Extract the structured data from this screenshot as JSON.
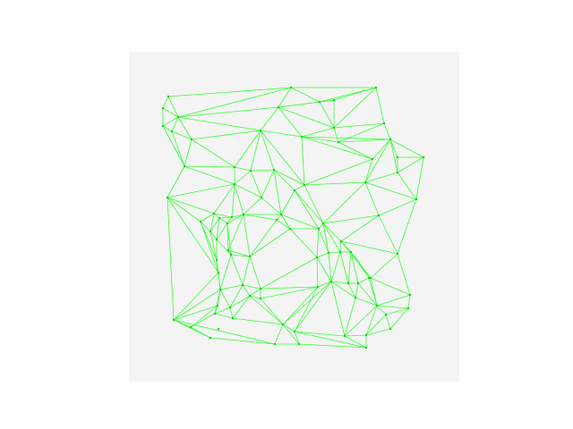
{
  "figure": {
    "background_color": "#ffffff",
    "axes_background_color": "#f4f4f4",
    "edge_color": "#33ff33",
    "node_color": "#22cc22"
  },
  "chart_data": {
    "type": "scatter",
    "title": "",
    "xlabel": "",
    "ylabel": "",
    "axes_visible": false,
    "grid": false,
    "xlim": [
      0,
      369
    ],
    "ylim": [
      0,
      369
    ],
    "points": [
      [
        44,
        50
      ],
      [
        181,
        40
      ],
      [
        276,
        40
      ],
      [
        38,
        63
      ],
      [
        55,
        73
      ],
      [
        167,
        62
      ],
      [
        213,
        56
      ],
      [
        229,
        54
      ],
      [
        229,
        85
      ],
      [
        285,
        80
      ],
      [
        38,
        83
      ],
      [
        48,
        89
      ],
      [
        70,
        98
      ],
      [
        147,
        88
      ],
      [
        193,
        95
      ],
      [
        234,
        101
      ],
      [
        292,
        98
      ],
      [
        300,
        118
      ],
      [
        329,
        118
      ],
      [
        272,
        120
      ],
      [
        62,
        128
      ],
      [
        118,
        129
      ],
      [
        136,
        133
      ],
      [
        162,
        132
      ],
      [
        300,
        135
      ],
      [
        118,
        148
      ],
      [
        196,
        149
      ],
      [
        264,
        146
      ],
      [
        185,
        155
      ],
      [
        43,
        163
      ],
      [
        148,
        163
      ],
      [
        321,
        165
      ],
      [
        95,
        181
      ],
      [
        101,
        186
      ],
      [
        115,
        185
      ],
      [
        128,
        182
      ],
      [
        170,
        182
      ],
      [
        217,
        192
      ],
      [
        279,
        183
      ],
      [
        165,
        188
      ],
      [
        110,
        192
      ],
      [
        80,
        190
      ],
      [
        180,
        198
      ],
      [
        212,
        198
      ],
      [
        91,
        201
      ],
      [
        98,
        210
      ],
      [
        237,
        212
      ],
      [
        111,
        222
      ],
      [
        223,
        225
      ],
      [
        236,
        224
      ],
      [
        248,
        224
      ],
      [
        300,
        226
      ],
      [
        114,
        227
      ],
      [
        98,
        233
      ],
      [
        135,
        229
      ],
      [
        210,
        230
      ],
      [
        100,
        247
      ],
      [
        270,
        253
      ],
      [
        102,
        266
      ],
      [
        127,
        261
      ],
      [
        147,
        265
      ],
      [
        226,
        257
      ],
      [
        245,
        259
      ],
      [
        256,
        259
      ],
      [
        268,
        253
      ],
      [
        211,
        263
      ],
      [
        314,
        272
      ],
      [
        99,
        284
      ],
      [
        113,
        286
      ],
      [
        135,
        273
      ],
      [
        147,
        276
      ],
      [
        253,
        275
      ],
      [
        277,
        284
      ],
      [
        50,
        300
      ],
      [
        96,
        293
      ],
      [
        116,
        298
      ],
      [
        312,
        287
      ],
      [
        287,
        294
      ],
      [
        100,
        310
      ],
      [
        172,
        305
      ],
      [
        241,
        318
      ],
      [
        185,
        313
      ],
      [
        292,
        310
      ],
      [
        91,
        320
      ],
      [
        69,
        308
      ],
      [
        163,
        327
      ],
      [
        265,
        317
      ],
      [
        190,
        327
      ],
      [
        265,
        331
      ]
    ],
    "triangles": [
      [
        0,
        1,
        4
      ],
      [
        0,
        3,
        4
      ],
      [
        3,
        10,
        4
      ],
      [
        10,
        11,
        4
      ],
      [
        1,
        5,
        4
      ],
      [
        1,
        2,
        6
      ],
      [
        1,
        6,
        5
      ],
      [
        6,
        7,
        5
      ],
      [
        7,
        8,
        6
      ],
      [
        2,
        9,
        8
      ],
      [
        2,
        7,
        6
      ],
      [
        2,
        8,
        7
      ],
      [
        8,
        15,
        9
      ],
      [
        9,
        16,
        15
      ],
      [
        16,
        17,
        18
      ],
      [
        16,
        15,
        14
      ],
      [
        14,
        8,
        15
      ],
      [
        5,
        13,
        4
      ],
      [
        5,
        14,
        8
      ],
      [
        5,
        13,
        14
      ],
      [
        4,
        12,
        13
      ],
      [
        11,
        12,
        4
      ],
      [
        10,
        20,
        11
      ],
      [
        11,
        20,
        12
      ],
      [
        12,
        21,
        13
      ],
      [
        13,
        22,
        21
      ],
      [
        22,
        23,
        13
      ],
      [
        13,
        26,
        14
      ],
      [
        13,
        23,
        26
      ],
      [
        14,
        19,
        15
      ],
      [
        15,
        19,
        16
      ],
      [
        16,
        24,
        17
      ],
      [
        17,
        24,
        18
      ],
      [
        18,
        31,
        24
      ],
      [
        19,
        27,
        16
      ],
      [
        24,
        27,
        16
      ],
      [
        24,
        31,
        27
      ],
      [
        26,
        19,
        14
      ],
      [
        26,
        27,
        19
      ],
      [
        20,
        21,
        12
      ],
      [
        20,
        25,
        21
      ],
      [
        25,
        22,
        21
      ],
      [
        20,
        29,
        25
      ],
      [
        29,
        32,
        25
      ],
      [
        25,
        30,
        22
      ],
      [
        30,
        23,
        22
      ],
      [
        25,
        32,
        34
      ],
      [
        33,
        34,
        32
      ],
      [
        25,
        34,
        35
      ],
      [
        35,
        30,
        25
      ],
      [
        30,
        36,
        23
      ],
      [
        28,
        23,
        36
      ],
      [
        28,
        26,
        23
      ],
      [
        28,
        37,
        26
      ],
      [
        37,
        27,
        26
      ],
      [
        38,
        27,
        37
      ],
      [
        38,
        31,
        27
      ],
      [
        38,
        51,
        31
      ],
      [
        29,
        41,
        32
      ],
      [
        41,
        44,
        32
      ],
      [
        44,
        33,
        32
      ],
      [
        33,
        40,
        34
      ],
      [
        34,
        40,
        35
      ],
      [
        40,
        47,
        35
      ],
      [
        35,
        36,
        39
      ],
      [
        39,
        36,
        42
      ],
      [
        42,
        43,
        36
      ],
      [
        43,
        37,
        28
      ],
      [
        43,
        28,
        36
      ],
      [
        37,
        46,
        38
      ],
      [
        46,
        51,
        38
      ],
      [
        44,
        45,
        33
      ],
      [
        45,
        40,
        33
      ],
      [
        45,
        52,
        40
      ],
      [
        52,
        47,
        40
      ],
      [
        41,
        53,
        44
      ],
      [
        53,
        45,
        44
      ],
      [
        41,
        56,
        53
      ],
      [
        29,
        56,
        41
      ],
      [
        47,
        54,
        35
      ],
      [
        54,
        39,
        35
      ],
      [
        54,
        42,
        39
      ],
      [
        43,
        55,
        42
      ],
      [
        43,
        48,
        55
      ],
      [
        48,
        37,
        43
      ],
      [
        48,
        49,
        37
      ],
      [
        49,
        46,
        37
      ],
      [
        49,
        50,
        46
      ],
      [
        50,
        57,
        46
      ],
      [
        57,
        51,
        46
      ],
      [
        56,
        58,
        53
      ],
      [
        58,
        59,
        52
      ],
      [
        59,
        54,
        52
      ],
      [
        59,
        60,
        54
      ],
      [
        60,
        65,
        55
      ],
      [
        55,
        65,
        61
      ],
      [
        61,
        48,
        55
      ],
      [
        61,
        49,
        48
      ],
      [
        61,
        62,
        49
      ],
      [
        62,
        50,
        49
      ],
      [
        62,
        63,
        50
      ],
      [
        63,
        64,
        50
      ],
      [
        64,
        57,
        50
      ],
      [
        57,
        66,
        51
      ],
      [
        64,
        72,
        57
      ],
      [
        72,
        66,
        57
      ],
      [
        29,
        73,
        56
      ],
      [
        73,
        67,
        58
      ],
      [
        67,
        74,
        58
      ],
      [
        74,
        68,
        58
      ],
      [
        68,
        69,
        59
      ],
      [
        69,
        70,
        60
      ],
      [
        70,
        65,
        60
      ],
      [
        65,
        79,
        61
      ],
      [
        61,
        71,
        62
      ],
      [
        71,
        63,
        62
      ],
      [
        71,
        72,
        63
      ],
      [
        72,
        64,
        63
      ],
      [
        72,
        76,
        66
      ],
      [
        73,
        83,
        84
      ],
      [
        84,
        67,
        73
      ],
      [
        84,
        74,
        67
      ],
      [
        74,
        75,
        68
      ],
      [
        75,
        69,
        68
      ],
      [
        75,
        79,
        69
      ],
      [
        79,
        70,
        69
      ],
      [
        79,
        65,
        70
      ],
      [
        79,
        81,
        65
      ],
      [
        81,
        80,
        61
      ],
      [
        80,
        71,
        61
      ],
      [
        80,
        86,
        72
      ],
      [
        86,
        77,
        72
      ],
      [
        77,
        76,
        72
      ],
      [
        77,
        82,
        76
      ],
      [
        73,
        85,
        83
      ],
      [
        85,
        87,
        79
      ],
      [
        87,
        81,
        79
      ],
      [
        87,
        88,
        81
      ],
      [
        88,
        86,
        80
      ],
      [
        86,
        82,
        77
      ]
    ]
  }
}
